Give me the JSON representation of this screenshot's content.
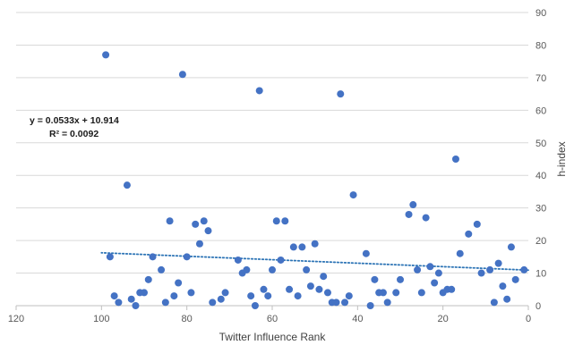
{
  "chart_data": {
    "type": "scatter",
    "title": "",
    "xlabel": "Twitter Influence Rank",
    "ylabel": "h-index",
    "xlim": [
      0,
      120
    ],
    "x_reversed": true,
    "ylim": [
      0,
      90
    ],
    "y_axis_side": "right",
    "x_ticks": [
      120,
      100,
      80,
      60,
      40,
      20,
      0
    ],
    "y_ticks": [
      0,
      10,
      20,
      30,
      40,
      50,
      60,
      70,
      80,
      90
    ],
    "grid": "horizontal",
    "marker_color": "#4472C4",
    "trendline": {
      "slope": 0.0533,
      "intercept": 10.914,
      "x_range": [
        0,
        100
      ],
      "style": "dotted",
      "color": "#2E75B6",
      "equation_label": "y = 0.0533x + 10.914",
      "r2_label": "R² = 0.0092"
    },
    "points": [
      {
        "x": 99,
        "y": 77
      },
      {
        "x": 98,
        "y": 15
      },
      {
        "x": 97,
        "y": 3
      },
      {
        "x": 96,
        "y": 1
      },
      {
        "x": 94,
        "y": 37
      },
      {
        "x": 93,
        "y": 2
      },
      {
        "x": 92,
        "y": 0
      },
      {
        "x": 91,
        "y": 4
      },
      {
        "x": 90,
        "y": 4
      },
      {
        "x": 89,
        "y": 8
      },
      {
        "x": 88,
        "y": 15
      },
      {
        "x": 86,
        "y": 11
      },
      {
        "x": 85,
        "y": 1
      },
      {
        "x": 84,
        "y": 26
      },
      {
        "x": 83,
        "y": 3
      },
      {
        "x": 82,
        "y": 7
      },
      {
        "x": 81,
        "y": 71
      },
      {
        "x": 80,
        "y": 15
      },
      {
        "x": 79,
        "y": 4
      },
      {
        "x": 78,
        "y": 25
      },
      {
        "x": 77,
        "y": 19
      },
      {
        "x": 76,
        "y": 26
      },
      {
        "x": 75,
        "y": 23
      },
      {
        "x": 74,
        "y": 1
      },
      {
        "x": 72,
        "y": 2
      },
      {
        "x": 71,
        "y": 4
      },
      {
        "x": 68,
        "y": 14
      },
      {
        "x": 67,
        "y": 10
      },
      {
        "x": 66,
        "y": 11
      },
      {
        "x": 65,
        "y": 3
      },
      {
        "x": 63,
        "y": 66
      },
      {
        "x": 64,
        "y": 0
      },
      {
        "x": 62,
        "y": 5
      },
      {
        "x": 61,
        "y": 3
      },
      {
        "x": 60,
        "y": 11
      },
      {
        "x": 59,
        "y": 26
      },
      {
        "x": 58,
        "y": 14
      },
      {
        "x": 57,
        "y": 26
      },
      {
        "x": 56,
        "y": 5
      },
      {
        "x": 55,
        "y": 18
      },
      {
        "x": 54,
        "y": 3
      },
      {
        "x": 53,
        "y": 18
      },
      {
        "x": 52,
        "y": 11
      },
      {
        "x": 51,
        "y": 6
      },
      {
        "x": 50,
        "y": 19
      },
      {
        "x": 49,
        "y": 5
      },
      {
        "x": 48,
        "y": 9
      },
      {
        "x": 47,
        "y": 4
      },
      {
        "x": 46,
        "y": 1
      },
      {
        "x": 45,
        "y": 1
      },
      {
        "x": 44,
        "y": 65
      },
      {
        "x": 43,
        "y": 1
      },
      {
        "x": 42,
        "y": 3
      },
      {
        "x": 41,
        "y": 34
      },
      {
        "x": 38,
        "y": 16
      },
      {
        "x": 37,
        "y": 0
      },
      {
        "x": 36,
        "y": 8
      },
      {
        "x": 35,
        "y": 4
      },
      {
        "x": 34,
        "y": 4
      },
      {
        "x": 33,
        "y": 1
      },
      {
        "x": 31,
        "y": 4
      },
      {
        "x": 30,
        "y": 8
      },
      {
        "x": 28,
        "y": 28
      },
      {
        "x": 27,
        "y": 31
      },
      {
        "x": 26,
        "y": 11
      },
      {
        "x": 25,
        "y": 4
      },
      {
        "x": 24,
        "y": 27
      },
      {
        "x": 23,
        "y": 12
      },
      {
        "x": 22,
        "y": 7
      },
      {
        "x": 21,
        "y": 10
      },
      {
        "x": 20,
        "y": 4
      },
      {
        "x": 19,
        "y": 5
      },
      {
        "x": 18,
        "y": 5
      },
      {
        "x": 17,
        "y": 45
      },
      {
        "x": 16,
        "y": 16
      },
      {
        "x": 14,
        "y": 22
      },
      {
        "x": 12,
        "y": 25
      },
      {
        "x": 11,
        "y": 10
      },
      {
        "x": 9,
        "y": 11
      },
      {
        "x": 8,
        "y": 1
      },
      {
        "x": 7,
        "y": 13
      },
      {
        "x": 6,
        "y": 6
      },
      {
        "x": 5,
        "y": 2
      },
      {
        "x": 4,
        "y": 18
      },
      {
        "x": 3,
        "y": 8
      },
      {
        "x": 1,
        "y": 11
      }
    ]
  }
}
